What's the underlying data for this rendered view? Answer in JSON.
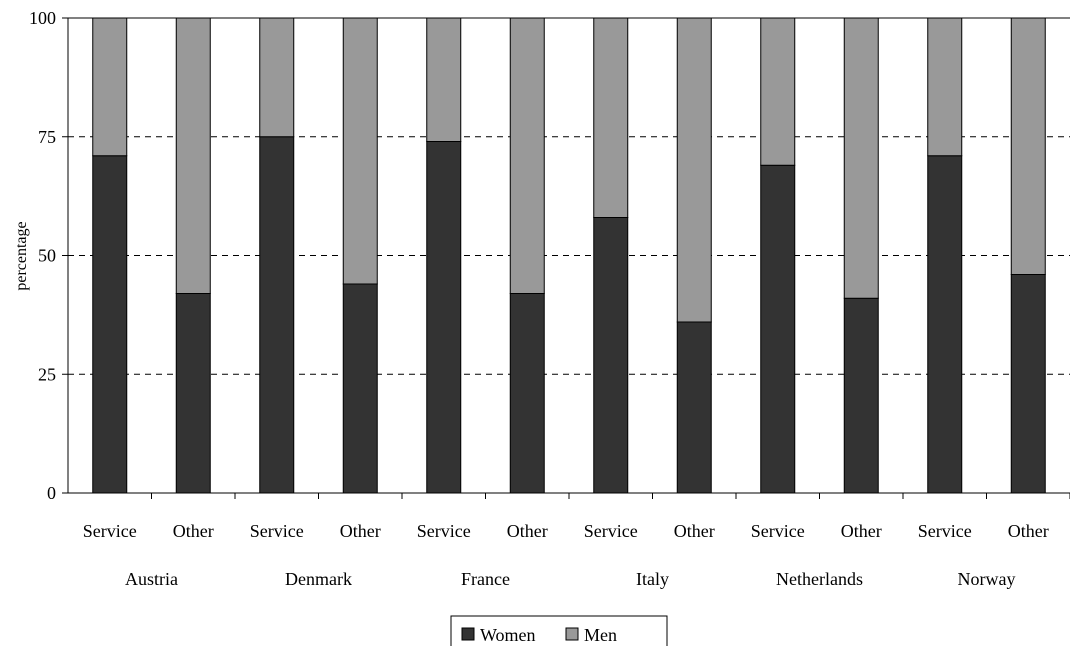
{
  "chart_data": {
    "type": "bar",
    "stacked": true,
    "ylabel": "percentage",
    "ylim": [
      0,
      100
    ],
    "yticks": [
      0,
      25,
      50,
      75,
      100
    ],
    "grid": "horizontal-dashed",
    "legend_position": "bottom-center",
    "groups": [
      "Austria",
      "Denmark",
      "France",
      "Italy",
      "Netherlands",
      "Norway"
    ],
    "categories": [
      "Service",
      "Other",
      "Service",
      "Other",
      "Service",
      "Other",
      "Service",
      "Other",
      "Service",
      "Other",
      "Service",
      "Other"
    ],
    "series": [
      {
        "name": "Women",
        "color": "#333333",
        "values": [
          71,
          42,
          75,
          44,
          74,
          42,
          58,
          36,
          69,
          41,
          71,
          46
        ]
      },
      {
        "name": "Men",
        "color": "#999999",
        "values": [
          29,
          58,
          25,
          56,
          26,
          58,
          42,
          64,
          31,
          59,
          29,
          54
        ]
      }
    ]
  }
}
